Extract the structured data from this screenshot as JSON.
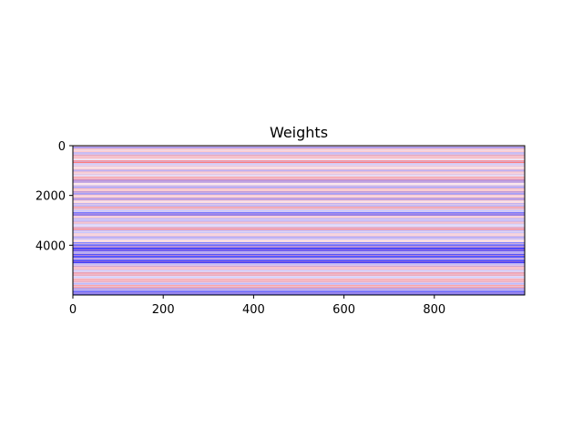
{
  "chart_data": {
    "type": "heatmap",
    "title": "Weights",
    "xlabel": "",
    "ylabel": "",
    "xlim": [
      0,
      1000
    ],
    "ylim": [
      6000,
      0
    ],
    "x_ticks": [
      0,
      200,
      400,
      600,
      800
    ],
    "y_ticks": [
      0,
      2000,
      4000
    ],
    "colormap": {
      "negative": "#0000ff",
      "zero": "#ffffff",
      "positive": "#ff0000"
    },
    "grid": false,
    "legend": "none",
    "description_rows_constant_along_x": true,
    "bands": [
      {
        "y0": 0,
        "y1": 120,
        "value": -0.6
      },
      {
        "y0": 120,
        "y1": 260,
        "value": 0.25
      },
      {
        "y0": 260,
        "y1": 380,
        "value": -0.4
      },
      {
        "y0": 380,
        "y1": 520,
        "value": 0.35
      },
      {
        "y0": 520,
        "y1": 600,
        "value": -0.2
      },
      {
        "y0": 600,
        "y1": 700,
        "value": 0.7
      },
      {
        "y0": 700,
        "y1": 820,
        "value": -0.3
      },
      {
        "y0": 820,
        "y1": 950,
        "value": 0.2
      },
      {
        "y0": 950,
        "y1": 1050,
        "value": -0.5
      },
      {
        "y0": 1050,
        "y1": 1150,
        "value": 0.3
      },
      {
        "y0": 1150,
        "y1": 1250,
        "value": -0.25
      },
      {
        "y0": 1250,
        "y1": 1380,
        "value": 0.45
      },
      {
        "y0": 1380,
        "y1": 1480,
        "value": -0.7
      },
      {
        "y0": 1480,
        "y1": 1600,
        "value": 0.15
      },
      {
        "y0": 1600,
        "y1": 1720,
        "value": -0.45
      },
      {
        "y0": 1720,
        "y1": 1850,
        "value": 0.3
      },
      {
        "y0": 1850,
        "y1": 1980,
        "value": -0.55
      },
      {
        "y0": 1980,
        "y1": 2100,
        "value": 0.25
      },
      {
        "y0": 2100,
        "y1": 2200,
        "value": -0.65
      },
      {
        "y0": 2200,
        "y1": 2320,
        "value": 0.2
      },
      {
        "y0": 2320,
        "y1": 2450,
        "value": -0.4
      },
      {
        "y0": 2450,
        "y1": 2550,
        "value": 0.5
      },
      {
        "y0": 2550,
        "y1": 2680,
        "value": -0.3
      },
      {
        "y0": 2680,
        "y1": 2800,
        "value": -0.75
      },
      {
        "y0": 2800,
        "y1": 2920,
        "value": 0.3
      },
      {
        "y0": 2920,
        "y1": 3050,
        "value": -0.35
      },
      {
        "y0": 3050,
        "y1": 3150,
        "value": 0.4
      },
      {
        "y0": 3150,
        "y1": 3280,
        "value": -0.2
      },
      {
        "y0": 3280,
        "y1": 3400,
        "value": 0.55
      },
      {
        "y0": 3400,
        "y1": 3520,
        "value": -0.3
      },
      {
        "y0": 3520,
        "y1": 3650,
        "value": 0.25
      },
      {
        "y0": 3650,
        "y1": 3760,
        "value": -0.45
      },
      {
        "y0": 3760,
        "y1": 3880,
        "value": 0.2
      },
      {
        "y0": 3880,
        "y1": 4000,
        "value": -0.6
      },
      {
        "y0": 4000,
        "y1": 4120,
        "value": -0.8
      },
      {
        "y0": 4120,
        "y1": 4250,
        "value": -0.9
      },
      {
        "y0": 4250,
        "y1": 4350,
        "value": -0.5
      },
      {
        "y0": 4350,
        "y1": 4480,
        "value": -0.85
      },
      {
        "y0": 4480,
        "y1": 4600,
        "value": -0.6
      },
      {
        "y0": 4600,
        "y1": 4720,
        "value": -0.95
      },
      {
        "y0": 4720,
        "y1": 4850,
        "value": -0.4
      },
      {
        "y0": 4850,
        "y1": 4980,
        "value": 0.35
      },
      {
        "y0": 4980,
        "y1": 5100,
        "value": -0.3
      },
      {
        "y0": 5100,
        "y1": 5220,
        "value": 0.5
      },
      {
        "y0": 5220,
        "y1": 5350,
        "value": -0.25
      },
      {
        "y0": 5350,
        "y1": 5480,
        "value": 0.4
      },
      {
        "y0": 5480,
        "y1": 5600,
        "value": -0.35
      },
      {
        "y0": 5600,
        "y1": 5720,
        "value": 0.45
      },
      {
        "y0": 5720,
        "y1": 5850,
        "value": -0.5
      },
      {
        "y0": 5850,
        "y1": 6000,
        "value": -0.7
      }
    ]
  }
}
